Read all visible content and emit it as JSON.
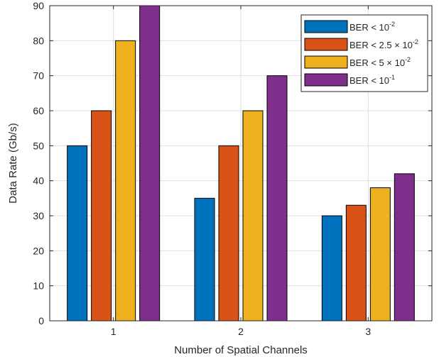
{
  "chart_data": {
    "type": "bar",
    "categories": [
      "1",
      "2",
      "3"
    ],
    "series": [
      {
        "label_base": "BER < 10",
        "label_exponent": "-2",
        "color": "#0072BD",
        "values": [
          50,
          35,
          30
        ]
      },
      {
        "label_base": "BER < 2.5 × 10",
        "label_exponent": "-2",
        "color": "#D95319",
        "values": [
          60,
          50,
          33
        ]
      },
      {
        "label_base": "BER < 5 × 10",
        "label_exponent": "-2",
        "color": "#EDB120",
        "values": [
          80,
          60,
          38
        ]
      },
      {
        "label_base": "BER < 10",
        "label_exponent": "-1",
        "color": "#7E2F8E",
        "values": [
          90,
          70,
          42
        ]
      }
    ],
    "xlabel": "Number of Spatial Channels",
    "ylabel": "Data Rate (Gb/s)",
    "ylim": [
      0,
      90
    ],
    "yticks": [
      0,
      10,
      20,
      30,
      40,
      50,
      60,
      70,
      80,
      90
    ],
    "grid": true,
    "legend_position": "top-right"
  }
}
